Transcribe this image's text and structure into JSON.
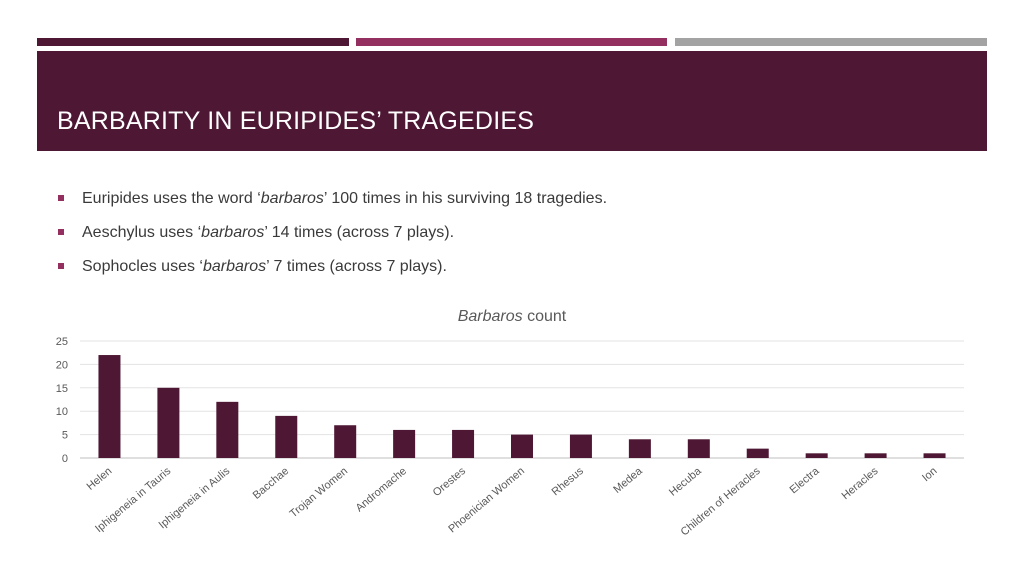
{
  "slide": {
    "title": "BARBARITY IN EURIPIDES’ TRAGEDIES",
    "bullets": [
      {
        "before": "Euripides uses the word ‘",
        "word": "barbaros",
        "after": "’ 100 times in his surviving 18 tragedies."
      },
      {
        "before": "Aeschylus uses ‘",
        "word": "barbaros",
        "after": "’ 14 times (across 7 plays)."
      },
      {
        "before": "Sophocles uses ‘",
        "word": "barbaros",
        "after": "’ 7 times (across 7 plays)."
      }
    ]
  },
  "colors": {
    "accent_dark": "#4e1734",
    "accent_mid": "#94305f",
    "accent_grey": "#a3a3a3",
    "bar": "#4e1734"
  },
  "chart_data": {
    "type": "bar",
    "title_italic": "Barbaros",
    "title_rest": " count",
    "categories": [
      "Helen",
      "Iphigeneia in Tauris",
      "Iphigeneia in Aulis",
      "Bacchae",
      "Trojan Women",
      "Andromache",
      "Orestes",
      "Phoenician Women",
      "Rhesus",
      "Medea",
      "Hecuba",
      "Children of Heracles",
      "Electra",
      "Heracles",
      "Ion"
    ],
    "values": [
      22,
      15,
      12,
      9,
      7,
      6,
      6,
      5,
      5,
      4,
      4,
      2,
      1,
      1,
      1
    ],
    "ylim": [
      0,
      25
    ],
    "yticks": [
      0,
      5,
      10,
      15,
      20,
      25
    ],
    "grid": true,
    "legend": "none"
  }
}
